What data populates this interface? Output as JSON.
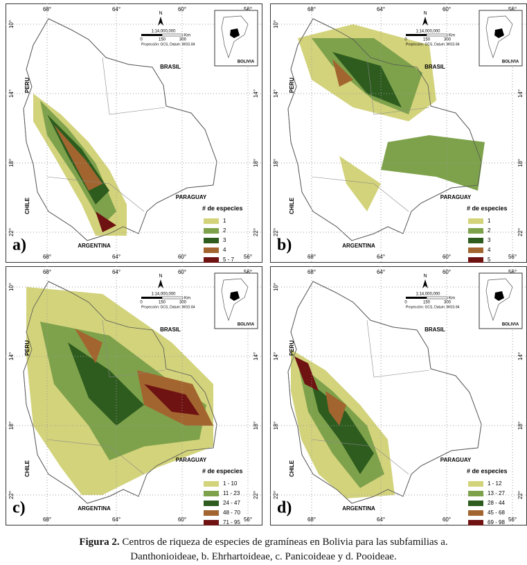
{
  "panels": [
    {
      "label": "a)",
      "legend_items": [
        "1",
        "2",
        "3",
        "4",
        "5 - 7"
      ]
    },
    {
      "label": "b)",
      "legend_items": [
        "1",
        "2",
        "3",
        "4",
        "5"
      ]
    },
    {
      "label": "c)",
      "legend_items": [
        "1 - 10",
        "11 - 23",
        "24 - 47",
        "48 - 70",
        "71 - 95"
      ]
    },
    {
      "label": "d)",
      "legend_items": [
        "1 - 12",
        "13 - 27",
        "28 - 44",
        "45 - 68",
        "69 - 98"
      ]
    }
  ],
  "legend_title": "# de especies",
  "legend_colors": [
    "#d3d37c",
    "#7ea24b",
    "#2e5c1f",
    "#a3652f",
    "#6e1212"
  ],
  "lon_ticks": [
    "68°",
    "64°",
    "60°",
    "56°"
  ],
  "lat_ticks": [
    "10°",
    "14°",
    "18°",
    "22°"
  ],
  "countries": {
    "brasil": "BRASIL",
    "peru": "PERU",
    "chile": "CHILE",
    "paraguay": "PARAGUAY",
    "argentina": "ARGENTINA"
  },
  "north": "N",
  "scale": "1:14,000,000",
  "scale_marks": [
    "0",
    "150",
    "300"
  ],
  "scale_unit": "Km",
  "projection": "Proyección: GCS, Datum: WGS 84",
  "inset_label": "BOLIVIA",
  "caption": {
    "bold": "Figura 2.",
    "line1": "Centros de riqueza de especies de gramíneas en Bolivia para las subfamilias a.",
    "line2": "Danthonioideae, b. Ehrhartoideae, c. Panicoideae y d. Pooideae."
  }
}
